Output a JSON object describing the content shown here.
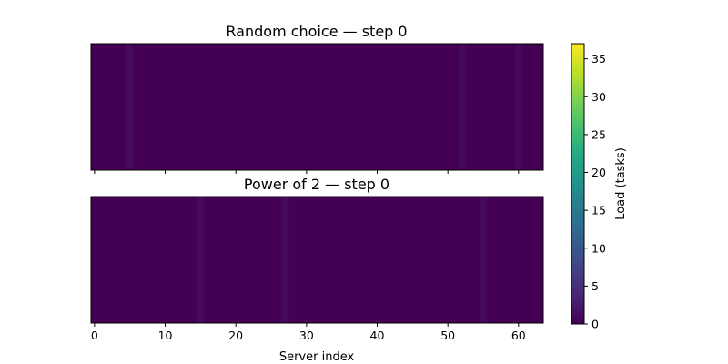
{
  "chart_data": [
    {
      "type": "heatmap",
      "title": "Random choice — step 0",
      "x": {
        "min": 0,
        "max": 63,
        "ticks": [
          0,
          10,
          20,
          30,
          40,
          50,
          60
        ],
        "tick_labels_shown": false
      },
      "y": {
        "ticks_shown": false
      },
      "values": [
        0,
        0,
        0,
        0,
        0,
        1,
        0,
        0,
        0,
        0,
        0,
        0,
        0,
        0,
        0,
        0,
        0,
        0,
        0,
        0,
        0,
        0,
        0,
        0,
        0,
        0,
        0,
        0,
        0,
        0,
        0,
        0,
        0,
        0,
        0,
        0,
        0,
        0,
        0,
        0,
        0,
        0,
        0,
        0,
        0,
        0,
        0,
        0,
        0,
        0,
        0,
        0,
        1,
        0,
        0,
        0,
        0,
        0,
        0,
        0,
        1,
        0,
        0,
        0
      ]
    },
    {
      "type": "heatmap",
      "title": "Power of 2 — step 0",
      "xlabel": "Server index",
      "x": {
        "min": 0,
        "max": 63,
        "ticks": [
          0,
          10,
          20,
          30,
          40,
          50,
          60
        ],
        "tick_labels_shown": true
      },
      "y": {
        "ticks_shown": false
      },
      "values": [
        0,
        0,
        0,
        0,
        0,
        0,
        0,
        0,
        0,
        0,
        0,
        0,
        0,
        0,
        0,
        1,
        0,
        0,
        0,
        0,
        0,
        0,
        0,
        0,
        0,
        0,
        0,
        1,
        0,
        0,
        0,
        0,
        0,
        0,
        0,
        0,
        0,
        0,
        0,
        0,
        0,
        0,
        0,
        0,
        0,
        0,
        0,
        0,
        0,
        0,
        0,
        0,
        0,
        0,
        0,
        1,
        0,
        0,
        0,
        0,
        0,
        0,
        0,
        0
      ]
    }
  ],
  "colorbar": {
    "label": "Load (tasks)",
    "min": 0,
    "max": 37,
    "ticks": [
      0,
      5,
      10,
      15,
      20,
      25,
      30,
      35
    ],
    "colormap": "viridis"
  }
}
